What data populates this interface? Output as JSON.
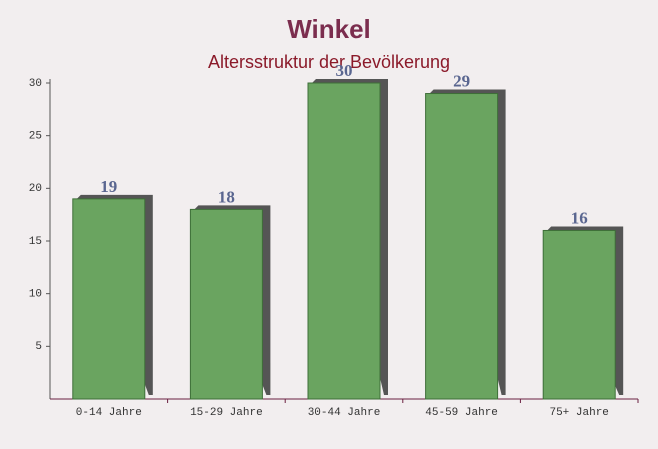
{
  "chart_data": {
    "type": "bar",
    "title": "Winkel",
    "subtitle": "Altersstruktur der Bevölkerung",
    "categories": [
      "0-14 Jahre",
      "15-29 Jahre",
      "30-44 Jahre",
      "45-59 Jahre",
      "75+ Jahre"
    ],
    "values": [
      19,
      18,
      30,
      29,
      16
    ],
    "color": "#6aa460",
    "ylim": [
      0,
      30
    ],
    "yticks": [
      5,
      10,
      15,
      20,
      25,
      30
    ],
    "grid": false
  }
}
